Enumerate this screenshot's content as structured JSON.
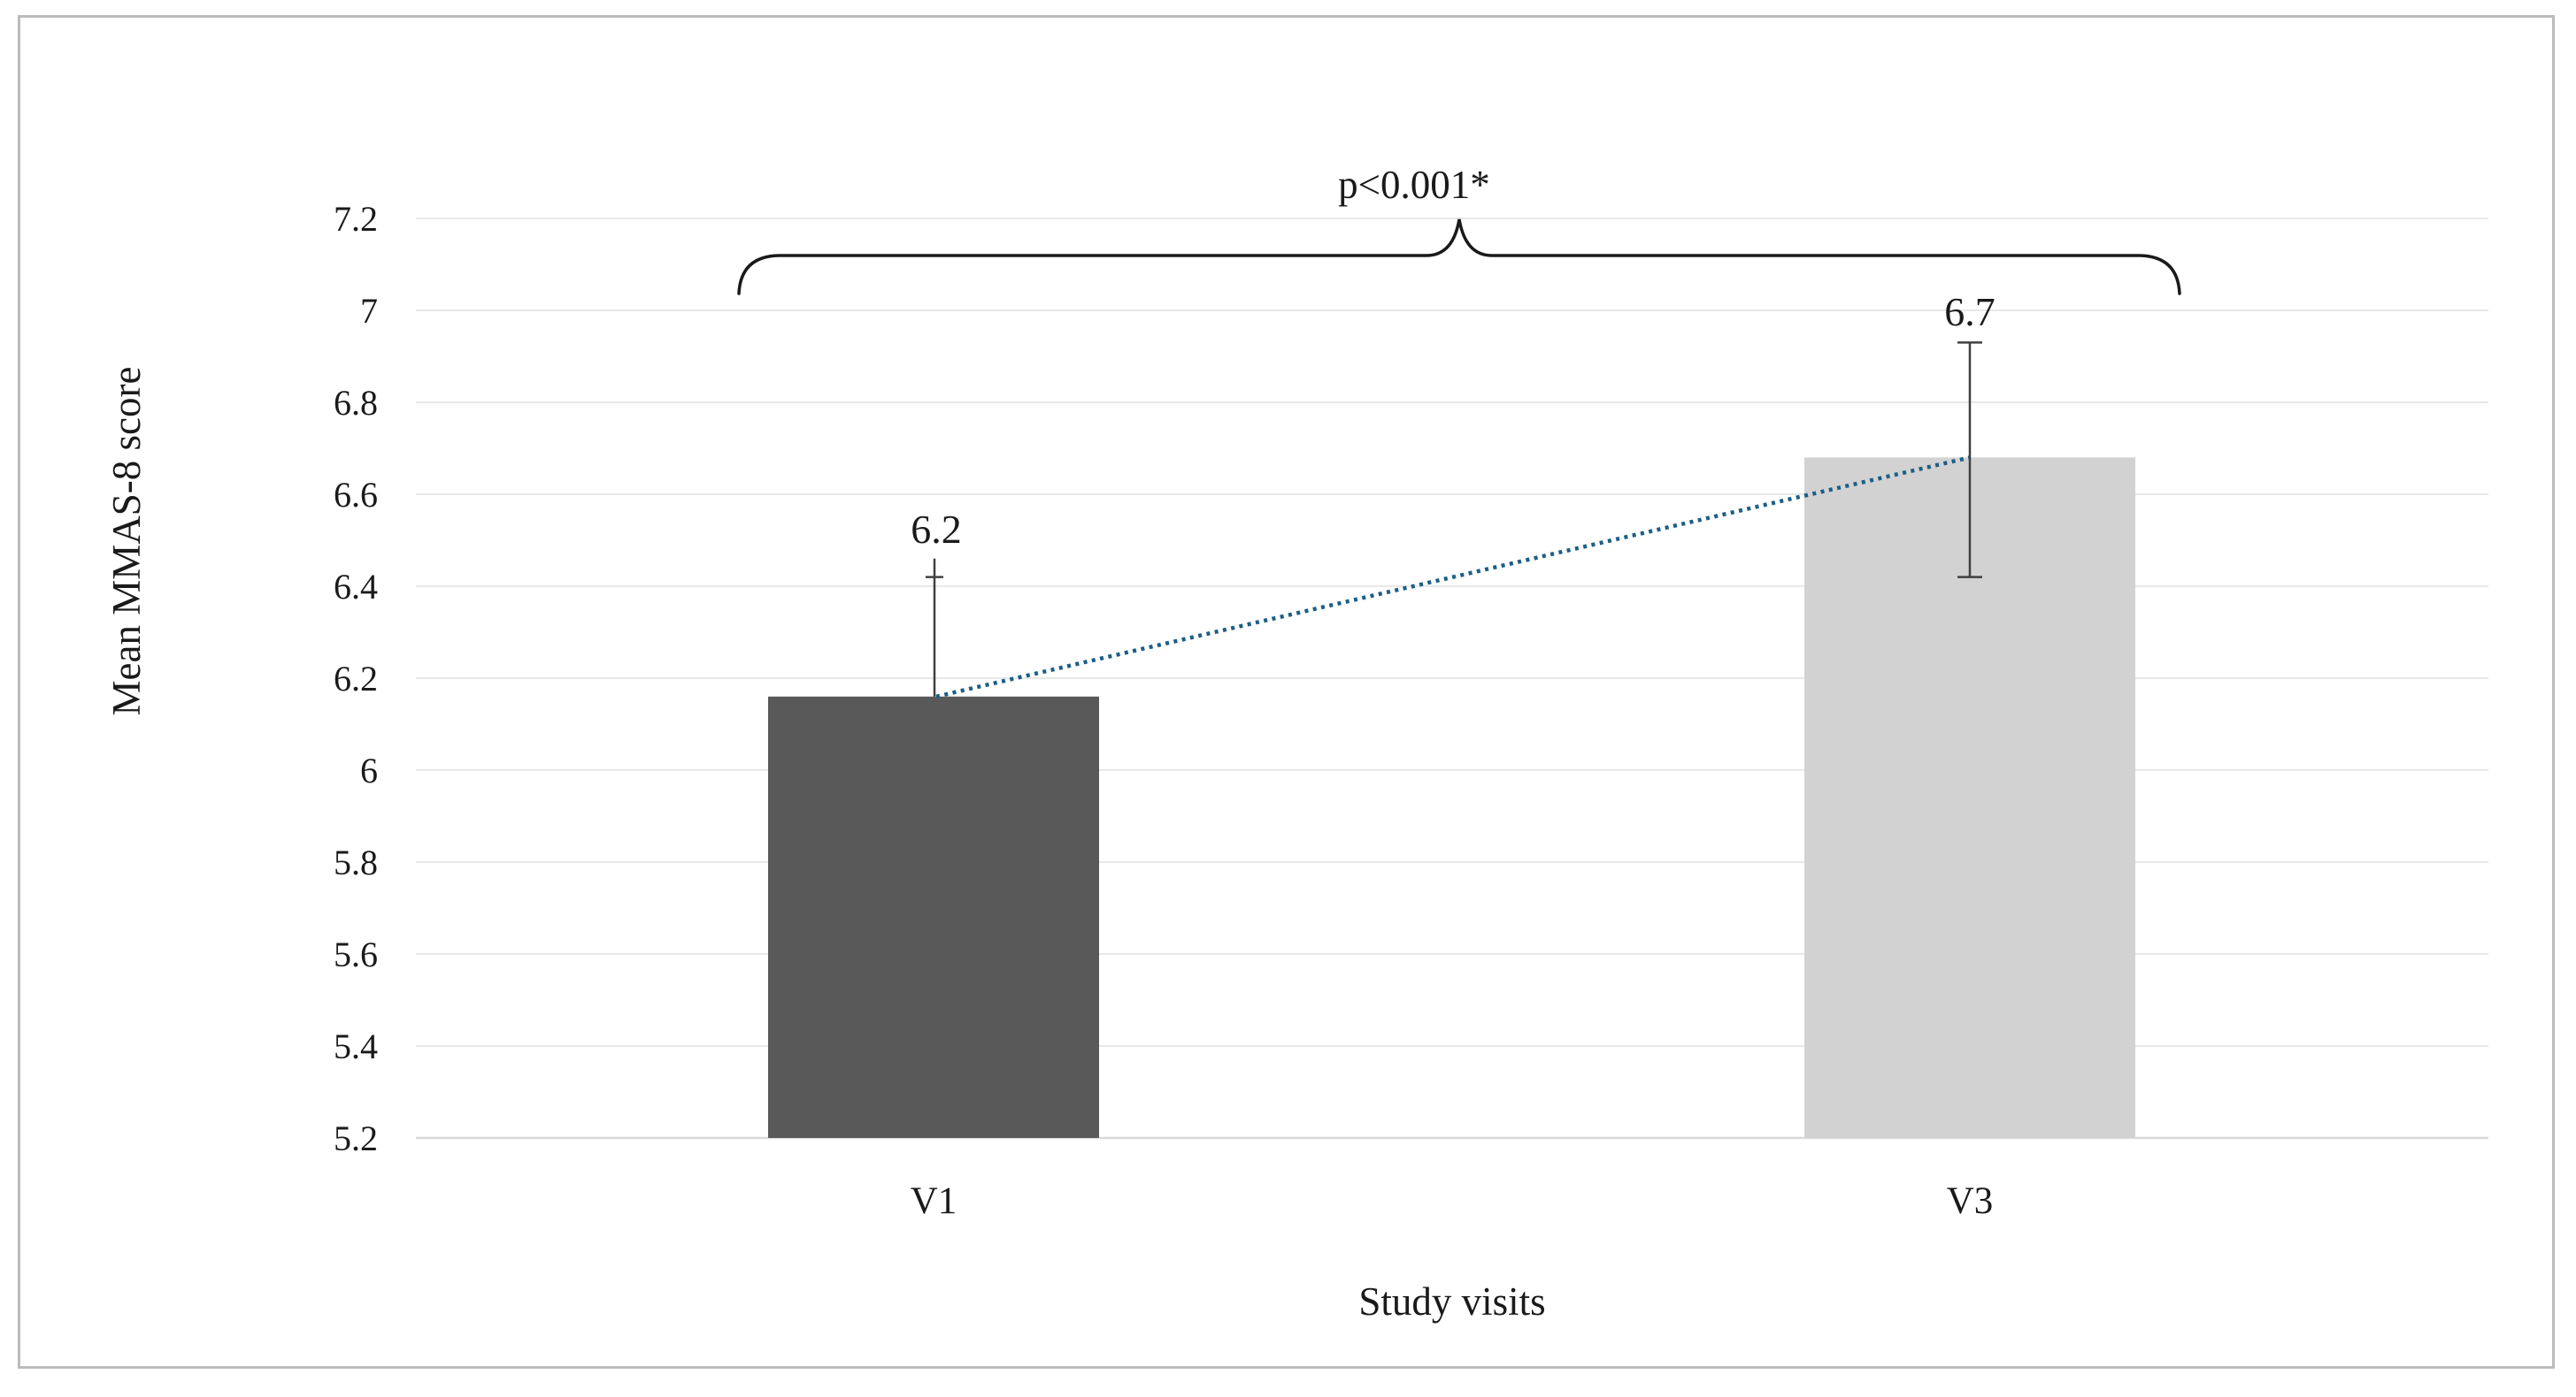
{
  "figure": {
    "background": "#ffffff",
    "border_color": "#bcbcbc"
  },
  "colors": {
    "bar_v1": "#595959",
    "bar_v3": "#d2d2d2",
    "trend_line": "#1b5e86",
    "error_bar": "#404040",
    "gridline": "#e8e8e8",
    "baseline": "#d9d9d9",
    "brace": "#1a1a1a",
    "text": "#1a1a1a"
  },
  "chart_data": {
    "type": "bar",
    "title": "",
    "xlabel": "Study visits",
    "ylabel": "Mean MMAS-8 score",
    "categories": [
      "V1",
      "V3"
    ],
    "series": [
      {
        "name": "Mean MMAS-8 score",
        "values": [
          6.16,
          6.68
        ]
      }
    ],
    "data_labels": [
      "6.2",
      "6.7"
    ],
    "error_bars": [
      {
        "category": "V1",
        "upper": 6.46,
        "cap_upper": 6.42,
        "lower": 6.16,
        "cap_lower": null
      },
      {
        "category": "V3",
        "upper": 6.93,
        "cap_upper": 6.93,
        "lower": 6.42,
        "cap_lower": 6.42
      }
    ],
    "trend_line": {
      "style": "dotted",
      "connects": [
        "V1",
        "V3"
      ],
      "at_values": [
        6.16,
        6.68
      ]
    },
    "annotation": {
      "text": "p<0.001*",
      "type": "significance-brace",
      "spans": [
        "V1",
        "V3"
      ]
    },
    "ylim": [
      5.2,
      7.2
    ],
    "ytick_step": 0.2,
    "yticks": [
      "7.2",
      "7",
      "6.8",
      "6.6",
      "6.4",
      "6.2",
      "6",
      "5.8",
      "5.6",
      "5.4",
      "5.2"
    ],
    "grid": true,
    "legend": false
  }
}
